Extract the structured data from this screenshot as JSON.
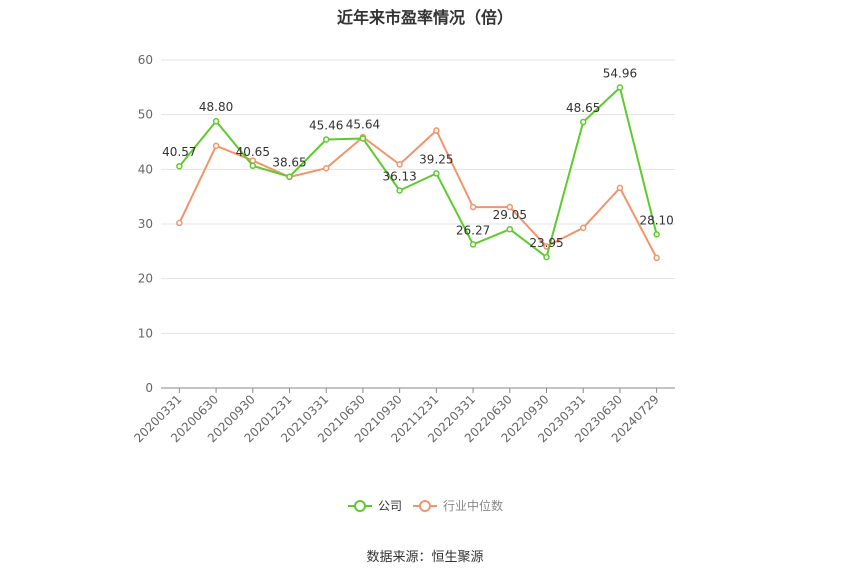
{
  "chart_data": {
    "type": "line",
    "title": "近年来市盈率情况（倍）",
    "source": "数据来源：恒生聚源",
    "xlabel": "",
    "ylabel": "",
    "ylim": [
      0,
      60
    ],
    "yticks": [
      0,
      10,
      20,
      30,
      40,
      50,
      60
    ],
    "grid": true,
    "legend_position": "bottom",
    "categories": [
      "20200331",
      "20200630",
      "20200930",
      "20201231",
      "20210331",
      "20210630",
      "20210930",
      "20211231",
      "20220331",
      "20220630",
      "20220930",
      "20230331",
      "20230630",
      "20240729"
    ],
    "series": [
      {
        "name": "公司",
        "color": "#5ecb2c",
        "values": [
          40.57,
          48.8,
          40.65,
          38.65,
          45.46,
          45.64,
          36.13,
          39.25,
          26.27,
          29.05,
          23.95,
          48.65,
          54.96,
          28.1
        ],
        "labels": [
          "40.57",
          "48.80",
          "40.65",
          "38.65",
          "45.46",
          "45.64",
          "36.13",
          "39.25",
          "26.27",
          "29.05",
          "23.95",
          "48.65",
          "54.96",
          "28.10"
        ]
      },
      {
        "name": "行业中位数",
        "color": "#f0956c",
        "values": [
          30.2,
          44.3,
          41.6,
          38.6,
          40.2,
          45.9,
          40.9,
          47.1,
          33.1,
          33.1,
          25.9,
          29.3,
          36.6,
          23.8
        ]
      }
    ]
  }
}
